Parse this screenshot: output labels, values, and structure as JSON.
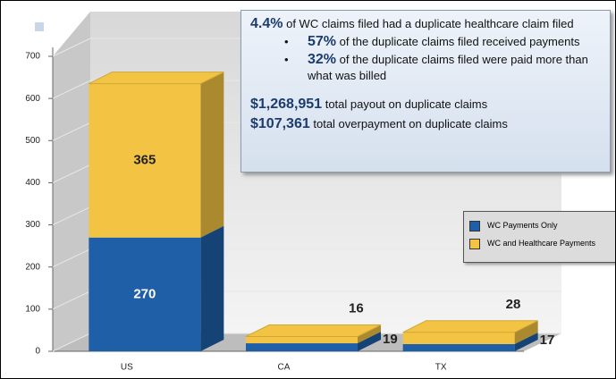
{
  "chart_data": {
    "type": "bar",
    "stacked": true,
    "categories": [
      "US",
      "CA",
      "TX"
    ],
    "series": [
      {
        "name": "WC Payments Only",
        "color": "#1f5fa8",
        "values": [
          270,
          19,
          17
        ]
      },
      {
        "name": "WC and Healthcare Payments",
        "color": "#f3c443",
        "values": [
          365,
          16,
          28
        ]
      }
    ],
    "ylim": [
      0,
      700
    ],
    "yticks": [
      0,
      100,
      200,
      300,
      400,
      500,
      600,
      700
    ],
    "grid": true,
    "annotation": {
      "headline": {
        "emphasis": "4.4%",
        "text": "of WC claims filed had a duplicate healthcare claim filed"
      },
      "bullets": [
        {
          "emphasis": "57%",
          "text": "of the duplicate claims filed received payments"
        },
        {
          "emphasis": "32%",
          "text": "of the duplicate claims filed were paid more than what was billed"
        }
      ],
      "totals": [
        {
          "emphasis": "$1,268,951",
          "text": "total payout on duplicate claims"
        },
        {
          "emphasis": "$107,361",
          "text": "total overpayment on duplicate claims"
        }
      ]
    }
  }
}
